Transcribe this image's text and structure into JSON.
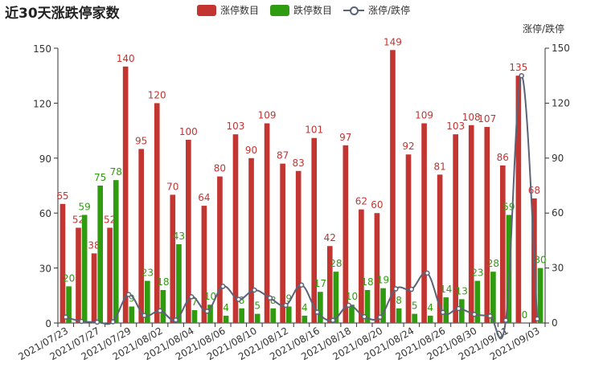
{
  "title": "近30天涨跌停家数",
  "legend": {
    "up": "涨停数目",
    "down": "跌停数目",
    "ratio": "涨停/跌停"
  },
  "colors": {
    "up": "#c23531",
    "down": "#2f9b0f",
    "ratio": "#5b6377"
  },
  "chart_data": {
    "type": "bar",
    "title": "近30天涨跌停家数",
    "categories": [
      "2021/07/23",
      "2021/07/26",
      "2021/07/27",
      "2021/07/28",
      "2021/07/29",
      "2021/07/30",
      "2021/08/02",
      "2021/08/03",
      "2021/08/04",
      "2021/08/05",
      "2021/08/06",
      "2021/08/09",
      "2021/08/10",
      "2021/08/11",
      "2021/08/12",
      "2021/08/13",
      "2021/08/16",
      "2021/08/17",
      "2021/08/18",
      "2021/08/19",
      "2021/08/20",
      "2021/08/23",
      "2021/08/24",
      "2021/08/25",
      "2021/08/26",
      "2021/08/27",
      "2021/08/30",
      "2021/08/31",
      "2021/09/01",
      "2021/09/02",
      "2021/09/03"
    ],
    "x_tick_labels": [
      "2021/07/23",
      "2021/07/27",
      "2021/07/29",
      "2021/08/02",
      "2021/08/04",
      "2021/08/06",
      "2021/08/10",
      "2021/08/12",
      "2021/08/16",
      "2021/08/18",
      "2021/08/20",
      "2021/08/24",
      "2021/08/26",
      "2021/08/30",
      "2021/09/01",
      "2021/09/03"
    ],
    "series": [
      {
        "name": "涨停数目",
        "type": "bar",
        "values": [
          65,
          52,
          38,
          52,
          140,
          95,
          120,
          70,
          100,
          64,
          80,
          103,
          90,
          109,
          87,
          83,
          101,
          42,
          97,
          62,
          60,
          149,
          92,
          109,
          81,
          103,
          108,
          107,
          86,
          135,
          68
        ]
      },
      {
        "name": "跌停数目",
        "type": "bar",
        "values": [
          20,
          59,
          75,
          78,
          9,
          23,
          18,
          43,
          7,
          10,
          4,
          8,
          5,
          8,
          9,
          4,
          17,
          28,
          10,
          18,
          19,
          8,
          5,
          4,
          14,
          13,
          23,
          28,
          59,
          0,
          30
        ]
      },
      {
        "name": "涨停/跌停",
        "type": "line",
        "axis": "right",
        "values": [
          3.25,
          0.88,
          0.51,
          0.67,
          15.56,
          4.13,
          6.67,
          1.63,
          14.29,
          6.4,
          20,
          12.88,
          18,
          13.63,
          9.67,
          20.75,
          5.94,
          1.5,
          9.7,
          3.44,
          3.16,
          18.63,
          18.4,
          27.25,
          5.79,
          7.92,
          4.7,
          3.82,
          1.46,
          135,
          2.27
        ]
      }
    ],
    "ylim": [
      0,
      150
    ],
    "y_ticks": [
      0,
      30,
      60,
      90,
      120,
      150
    ],
    "y2label": "涨停/跌停",
    "y2lim": [
      0,
      150
    ],
    "y2_ticks": [
      0,
      30,
      60,
      90,
      120,
      150
    ],
    "grid": false,
    "legend_position": "top-center"
  }
}
